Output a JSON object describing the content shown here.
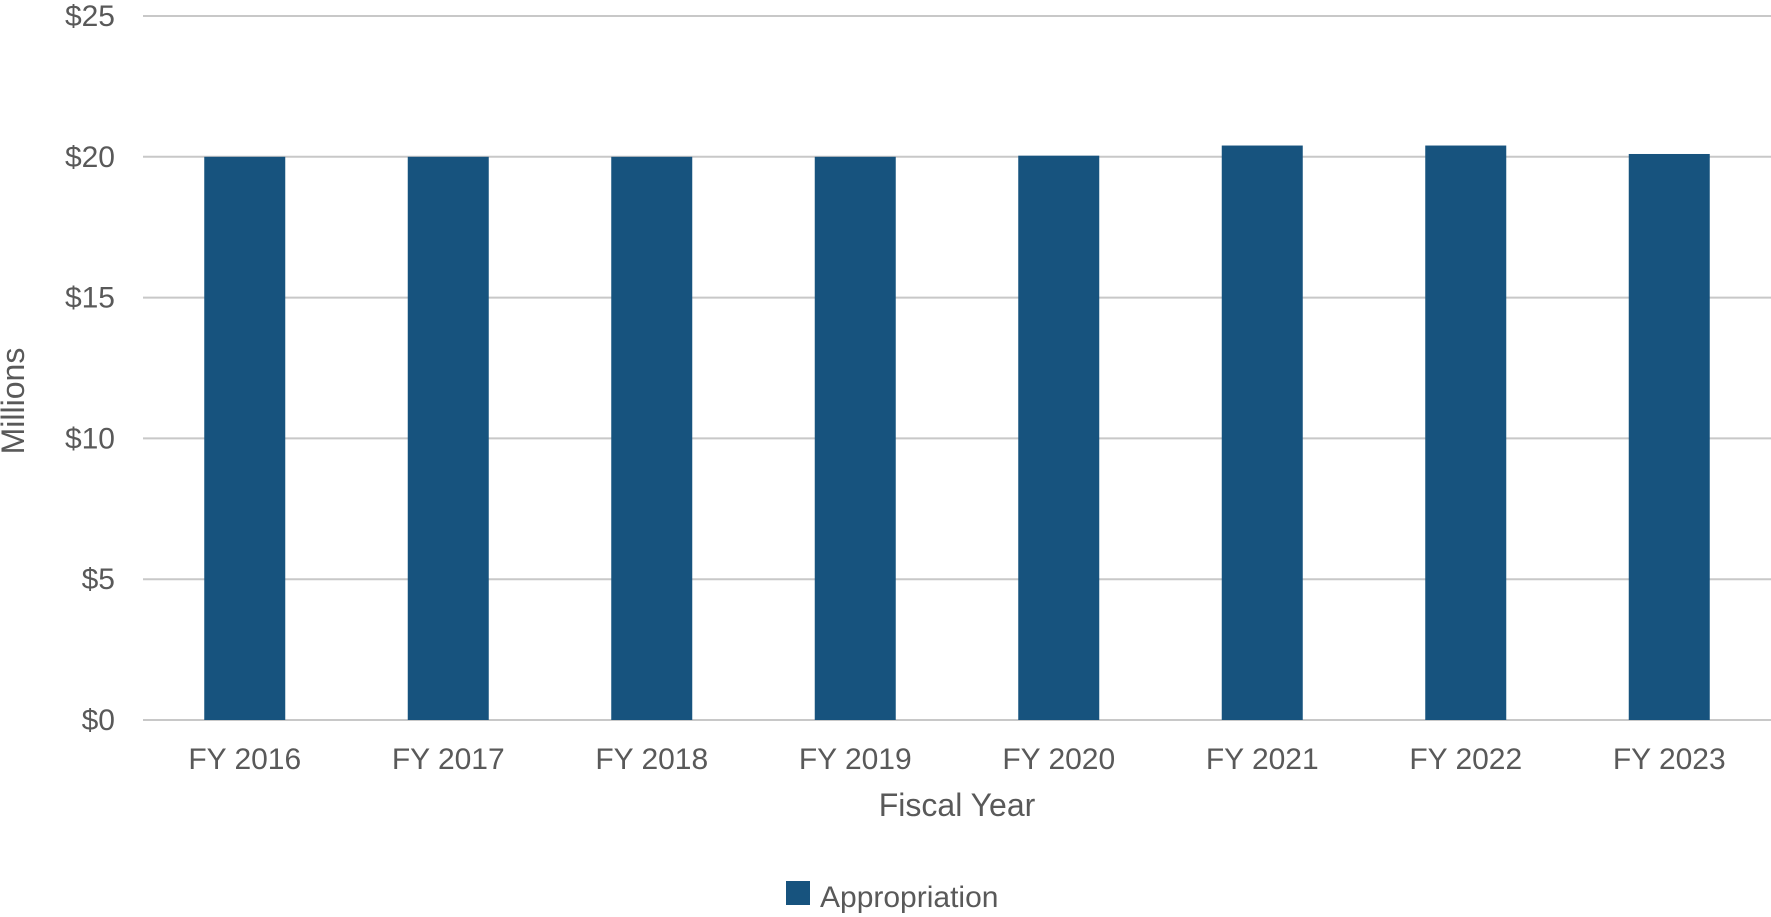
{
  "chart_data": {
    "type": "bar",
    "title": "",
    "xlabel": "Fiscal Year",
    "ylabel": "Millions",
    "categories": [
      "FY 2016",
      "FY 2017",
      "FY 2018",
      "FY 2019",
      "FY 2020",
      "FY 2021",
      "FY 2022",
      "FY 2023"
    ],
    "series": [
      {
        "name": "Appropriation",
        "color": "#17537e",
        "values": [
          20.0,
          20.0,
          20.0,
          20.0,
          20.04,
          20.4,
          20.4,
          20.1
        ]
      }
    ],
    "ylim": [
      0,
      25
    ],
    "yticks": [
      0,
      5,
      10,
      15,
      20,
      25
    ],
    "ytick_labels": [
      "$0",
      "$5",
      "$10",
      "$15",
      "$20",
      "$25"
    ],
    "grid": true,
    "legend_position": "bottom-center",
    "gridline_color": "#c8c8c8",
    "text_color": "#595959"
  }
}
